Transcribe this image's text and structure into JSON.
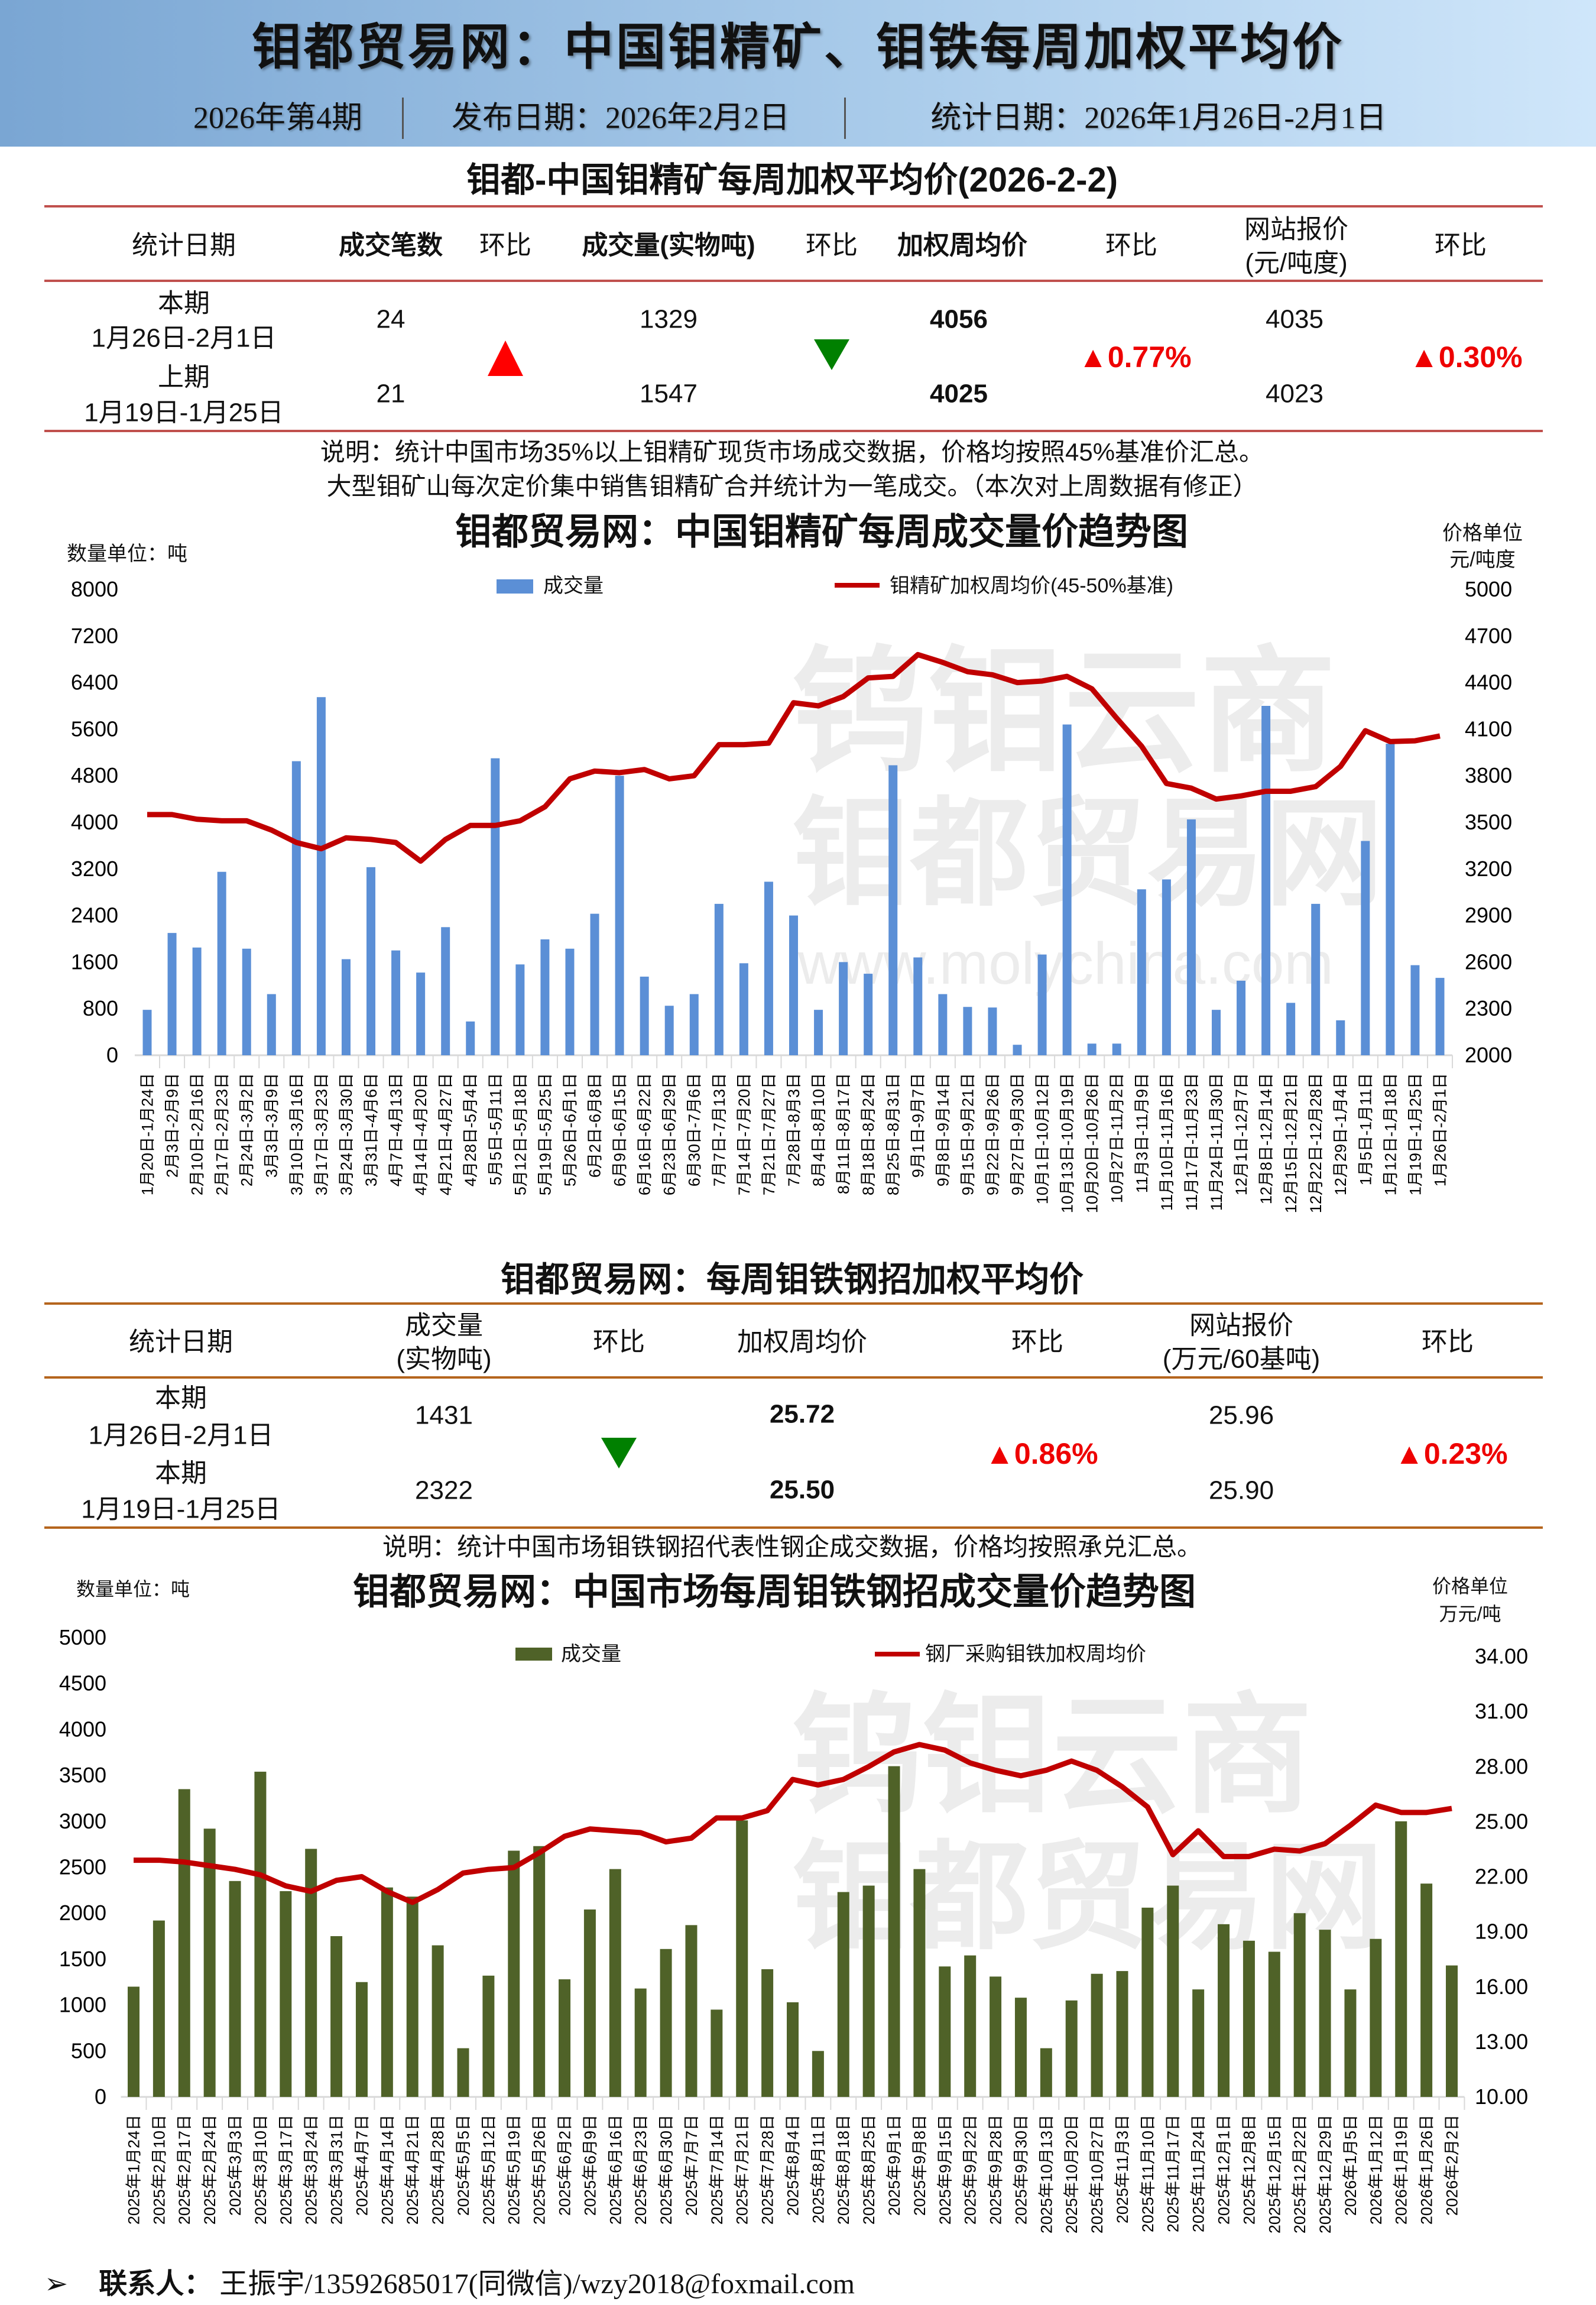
{
  "header": {
    "title": "钼都贸易网：中国钼精矿、钼铁每周加权平均价",
    "issue": "2026年第4期",
    "publish_date": "发布日期：2026年2月2日",
    "stat_date": "统计日期：2026年1月26日-2月1日",
    "bg_colors": [
      "#7aa6d3",
      "#cfe6fa"
    ]
  },
  "table1": {
    "title": "钼都-中国钼精矿每周加权平均价(2026-2-2)",
    "headers": [
      "统计日期",
      "成交笔数",
      "环比",
      "成交量(实物吨)",
      "环比",
      "加权周均价",
      "环比",
      "网站报价",
      "环比"
    ],
    "header_quote_unit": "(元/吨度)",
    "rows": [
      {
        "period": "本期",
        "dates": "1月26日-2月1日",
        "deals": "24",
        "volume": "1329",
        "avg_price": "4056",
        "quote": "4035"
      },
      {
        "period": "上期",
        "dates": "1月19日-1月25日",
        "deals": "21",
        "volume": "1547",
        "avg_price": "4025",
        "quote": "4023"
      }
    ],
    "deals_change": "up",
    "volume_change": "down",
    "avg_price_change": "▲0.77%",
    "quote_change": "▲0.30%",
    "note_lines": [
      "说明：统计中国市场35%以上钼精矿现货市场成交数据，价格均按照45%基准价汇总。",
      "大型钼矿山每次定价集中销售钼精矿合并统计为一笔成交。（本次对上周数据有修正）"
    ],
    "line_color": "#c0504d"
  },
  "table2": {
    "title": "钼都贸易网：每周钼铁钢招加权平均价",
    "headers": [
      "统计日期",
      "成交量",
      "环比",
      "加权周均价",
      "环比",
      "网站报价",
      "环比"
    ],
    "header_volume_unit": "(实物吨)",
    "header_quote_unit": "(万元/60基吨)",
    "rows": [
      {
        "period": "本期",
        "dates": "1月26日-2月1日",
        "volume": "1431",
        "avg_price": "25.72",
        "quote": "25.96"
      },
      {
        "period": "本期",
        "dates": "1月19日-1月25日",
        "volume": "2322",
        "avg_price": "25.50",
        "quote": "25.90"
      }
    ],
    "volume_change": "down",
    "avg_price_change": "▲0.86%",
    "quote_change": "▲0.23%",
    "note": "说明：统计中国市场钼铁钢招代表性钢企成交数据，价格均按照承兑汇总。",
    "line_color": "#b5651d"
  },
  "watermark": {
    "line1": "钨钼云商",
    "line2": "钼都贸易网",
    "url": "www.molychina.com"
  },
  "chart_data": [
    {
      "type": "bar+line",
      "title": "钼都贸易网：中国钼精矿每周成交量价趋势图",
      "left_unit": "数量单位：吨",
      "right_unit_1": "价格单位",
      "right_unit_2": "元/吨度",
      "legend": [
        "成交量",
        "钼精矿加权周均价(45-50%基准)"
      ],
      "legend_placement": "top",
      "bar_color": "#5b8fd6",
      "line_color": "#c00000",
      "ylim_left": [
        0,
        8000
      ],
      "yticks_left": [
        0,
        800,
        1600,
        2400,
        3200,
        4000,
        4800,
        5600,
        6400,
        7200,
        8000
      ],
      "ylim_right": [
        2000,
        5000
      ],
      "yticks_right": [
        2000,
        2300,
        2600,
        2900,
        3200,
        3500,
        3800,
        4100,
        4400,
        4700,
        5000
      ],
      "categories": [
        "1月20日-1月24日",
        "2月3日-2月9日",
        "2月10日-2月16日",
        "2月17日-2月23日",
        "2月24日-3月2日",
        "3月3日-3月9日",
        "3月10日-3月16日",
        "3月17日-3月23日",
        "3月24日-3月30日",
        "3月31日-4月6日",
        "4月7日-4月13日",
        "4月14日-4月20日",
        "4月21日-4月27日",
        "4月28日-5月4日",
        "5月5日-5月11日",
        "5月12日-5月18日",
        "5月19日-5月25日",
        "5月26日-6月1日",
        "6月2日-6月8日",
        "6月9日-6月15日",
        "6月16日-6月22日",
        "6月23日-6月29日",
        "6月30日-7月6日",
        "7月7日-7月13日",
        "7月14日-7月20日",
        "7月21日-7月27日",
        "7月28日-8月3日",
        "8月4日-8月10日",
        "8月11日-8月17日",
        "8月18日-8月24日",
        "8月25日-8月31日",
        "9月1日-9月7日",
        "9月8日-9月14日",
        "9月15日-9月21日",
        "9月22日-9月26日",
        "9月27日-9月30日",
        "10月1日-10月12日",
        "10月13日-10月19日",
        "10月20日-10月26日",
        "10月27日-11月2日",
        "11月3日-11月9日",
        "11月10日-11月16日",
        "11月17日-11月23日",
        "11月24日-11月30日",
        "12月1日-12月7日",
        "12月8日-12月14日",
        "12月15日-12月21日",
        "12月22日-12月28日",
        "12月29日-1月4日",
        "1月5日-1月11日",
        "1月12日-1月18日",
        "1月19日-1月25日",
        "1月26日-2月1日"
      ],
      "series": [
        {
          "name": "成交量",
          "axis": "left",
          "kind": "bar",
          "values": [
            780,
            2100,
            1850,
            3150,
            1830,
            1050,
            5050,
            6150,
            1650,
            3230,
            1800,
            1420,
            2200,
            580,
            5100,
            1560,
            1990,
            1830,
            2430,
            4800,
            1350,
            850,
            1050,
            2600,
            1580,
            2980,
            2400,
            780,
            1600,
            1400,
            4980,
            1680,
            1050,
            830,
            820,
            180,
            1730,
            5680,
            200,
            200,
            2850,
            3020,
            4050,
            780,
            1280,
            6000,
            900,
            2600,
            600,
            3680,
            5350,
            1547,
            1329
          ]
        },
        {
          "name": "钼精矿加权周均价(45-50%基准)",
          "axis": "right",
          "kind": "line",
          "values": [
            3550,
            3550,
            3520,
            3510,
            3510,
            3450,
            3370,
            3330,
            3400,
            3390,
            3370,
            3250,
            3390,
            3480,
            3480,
            3510,
            3600,
            3780,
            3830,
            3820,
            3840,
            3780,
            3800,
            4000,
            4000,
            4010,
            4270,
            4250,
            4310,
            4430,
            4440,
            4580,
            4530,
            4470,
            4450,
            4400,
            4410,
            4440,
            4360,
            4170,
            3990,
            3750,
            3720,
            3650,
            3670,
            3700,
            3700,
            3730,
            3860,
            4090,
            4020,
            4025,
            4056
          ]
        }
      ]
    },
    {
      "type": "bar+line",
      "title": "钼都贸易网：中国市场每周钼铁钢招成交量价趋势图",
      "left_unit": "数量单位：吨",
      "right_unit_1": "价格单位",
      "right_unit_2": "万元/吨",
      "legend": [
        "成交量",
        "钢厂采购钼铁加权周均价"
      ],
      "legend_placement": "top",
      "bar_color": "#4f6228",
      "line_color": "#c00000",
      "ylim_left": [
        0,
        5000
      ],
      "yticks_left": [
        0,
        500,
        1000,
        1500,
        2000,
        2500,
        3000,
        3500,
        4000,
        4500,
        5000
      ],
      "ylim_right": [
        10,
        34
      ],
      "yticks_right": [
        "10.00",
        "13.00",
        "16.00",
        "19.00",
        "22.00",
        "25.00",
        "28.00",
        "31.00",
        "34.00"
      ],
      "categories": [
        "2025年1月24日",
        "2025年2月10日",
        "2025年2月17日",
        "2025年2月24日",
        "2025年3月3日",
        "2025年3月10日",
        "2025年3月17日",
        "2025年3月24日",
        "2025年3月31日",
        "2025年4月7日",
        "2025年4月14日",
        "2025年4月21日",
        "2025年4月28日",
        "2025年5月5日",
        "2025年5月12日",
        "2025年5月19日",
        "2025年5月26日",
        "2025年6月2日",
        "2025年6月9日",
        "2025年6月16日",
        "2025年6月23日",
        "2025年6月30日",
        "2025年7月7日",
        "2025年7月14日",
        "2025年7月21日",
        "2025年7月28日",
        "2025年8月4日",
        "2025年8月11日",
        "2025年8月18日",
        "2025年8月25日",
        "2025年9月1日",
        "2025年9月8日",
        "2025年9月15日",
        "2025年9月22日",
        "2025年9月28日",
        "2025年9月30日",
        "2025年10月13日",
        "2025年10月20日",
        "2025年10月27日",
        "2025年11月3日",
        "2025年11月10日",
        "2025年11月17日",
        "2025年11月24日",
        "2025年12月1日",
        "2025年12月8日",
        "2025年12月15日",
        "2025年12月22日",
        "2025年12月29日",
        "2026年1月5日",
        "2026年1月12日",
        "2026年1月19日",
        "2026年1月26日",
        "2026年2月2日"
      ],
      "series": [
        {
          "name": "成交量",
          "axis": "left",
          "kind": "bar",
          "values": [
            1200,
            1920,
            3350,
            2920,
            2350,
            3540,
            2240,
            2700,
            1750,
            1250,
            2280,
            2180,
            1650,
            530,
            1320,
            2680,
            2730,
            1280,
            2040,
            2480,
            1180,
            1610,
            1870,
            950,
            3010,
            1390,
            1030,
            500,
            2230,
            2300,
            3600,
            2480,
            1420,
            1540,
            1310,
            1080,
            530,
            1050,
            1340,
            1370,
            2060,
            2300,
            1170,
            1880,
            1700,
            1580,
            2000,
            1820,
            1170,
            1720,
            3000,
            2322,
            1431
          ]
        },
        {
          "name": "钢厂采购钼铁加权周均价",
          "axis": "right",
          "kind": "line",
          "values": [
            22.9,
            22.9,
            22.8,
            22.6,
            22.4,
            22.1,
            21.5,
            21.2,
            21.8,
            22.0,
            21.2,
            20.6,
            21.3,
            22.2,
            22.4,
            22.5,
            23.3,
            24.2,
            24.6,
            24.5,
            24.4,
            23.9,
            24.1,
            25.2,
            25.2,
            25.6,
            27.3,
            27.0,
            27.3,
            28.0,
            28.8,
            29.2,
            28.9,
            28.2,
            27.8,
            27.5,
            27.8,
            28.3,
            27.8,
            26.9,
            25.8,
            23.2,
            24.5,
            23.1,
            23.1,
            23.5,
            23.4,
            23.8,
            24.8,
            25.9,
            25.5,
            25.5,
            25.72
          ]
        }
      ]
    }
  ],
  "footer": {
    "bullet": "➢",
    "label": "联系人：",
    "contact": "王振宇/13592685017(同微信)/wzy2018@foxmail.com"
  }
}
